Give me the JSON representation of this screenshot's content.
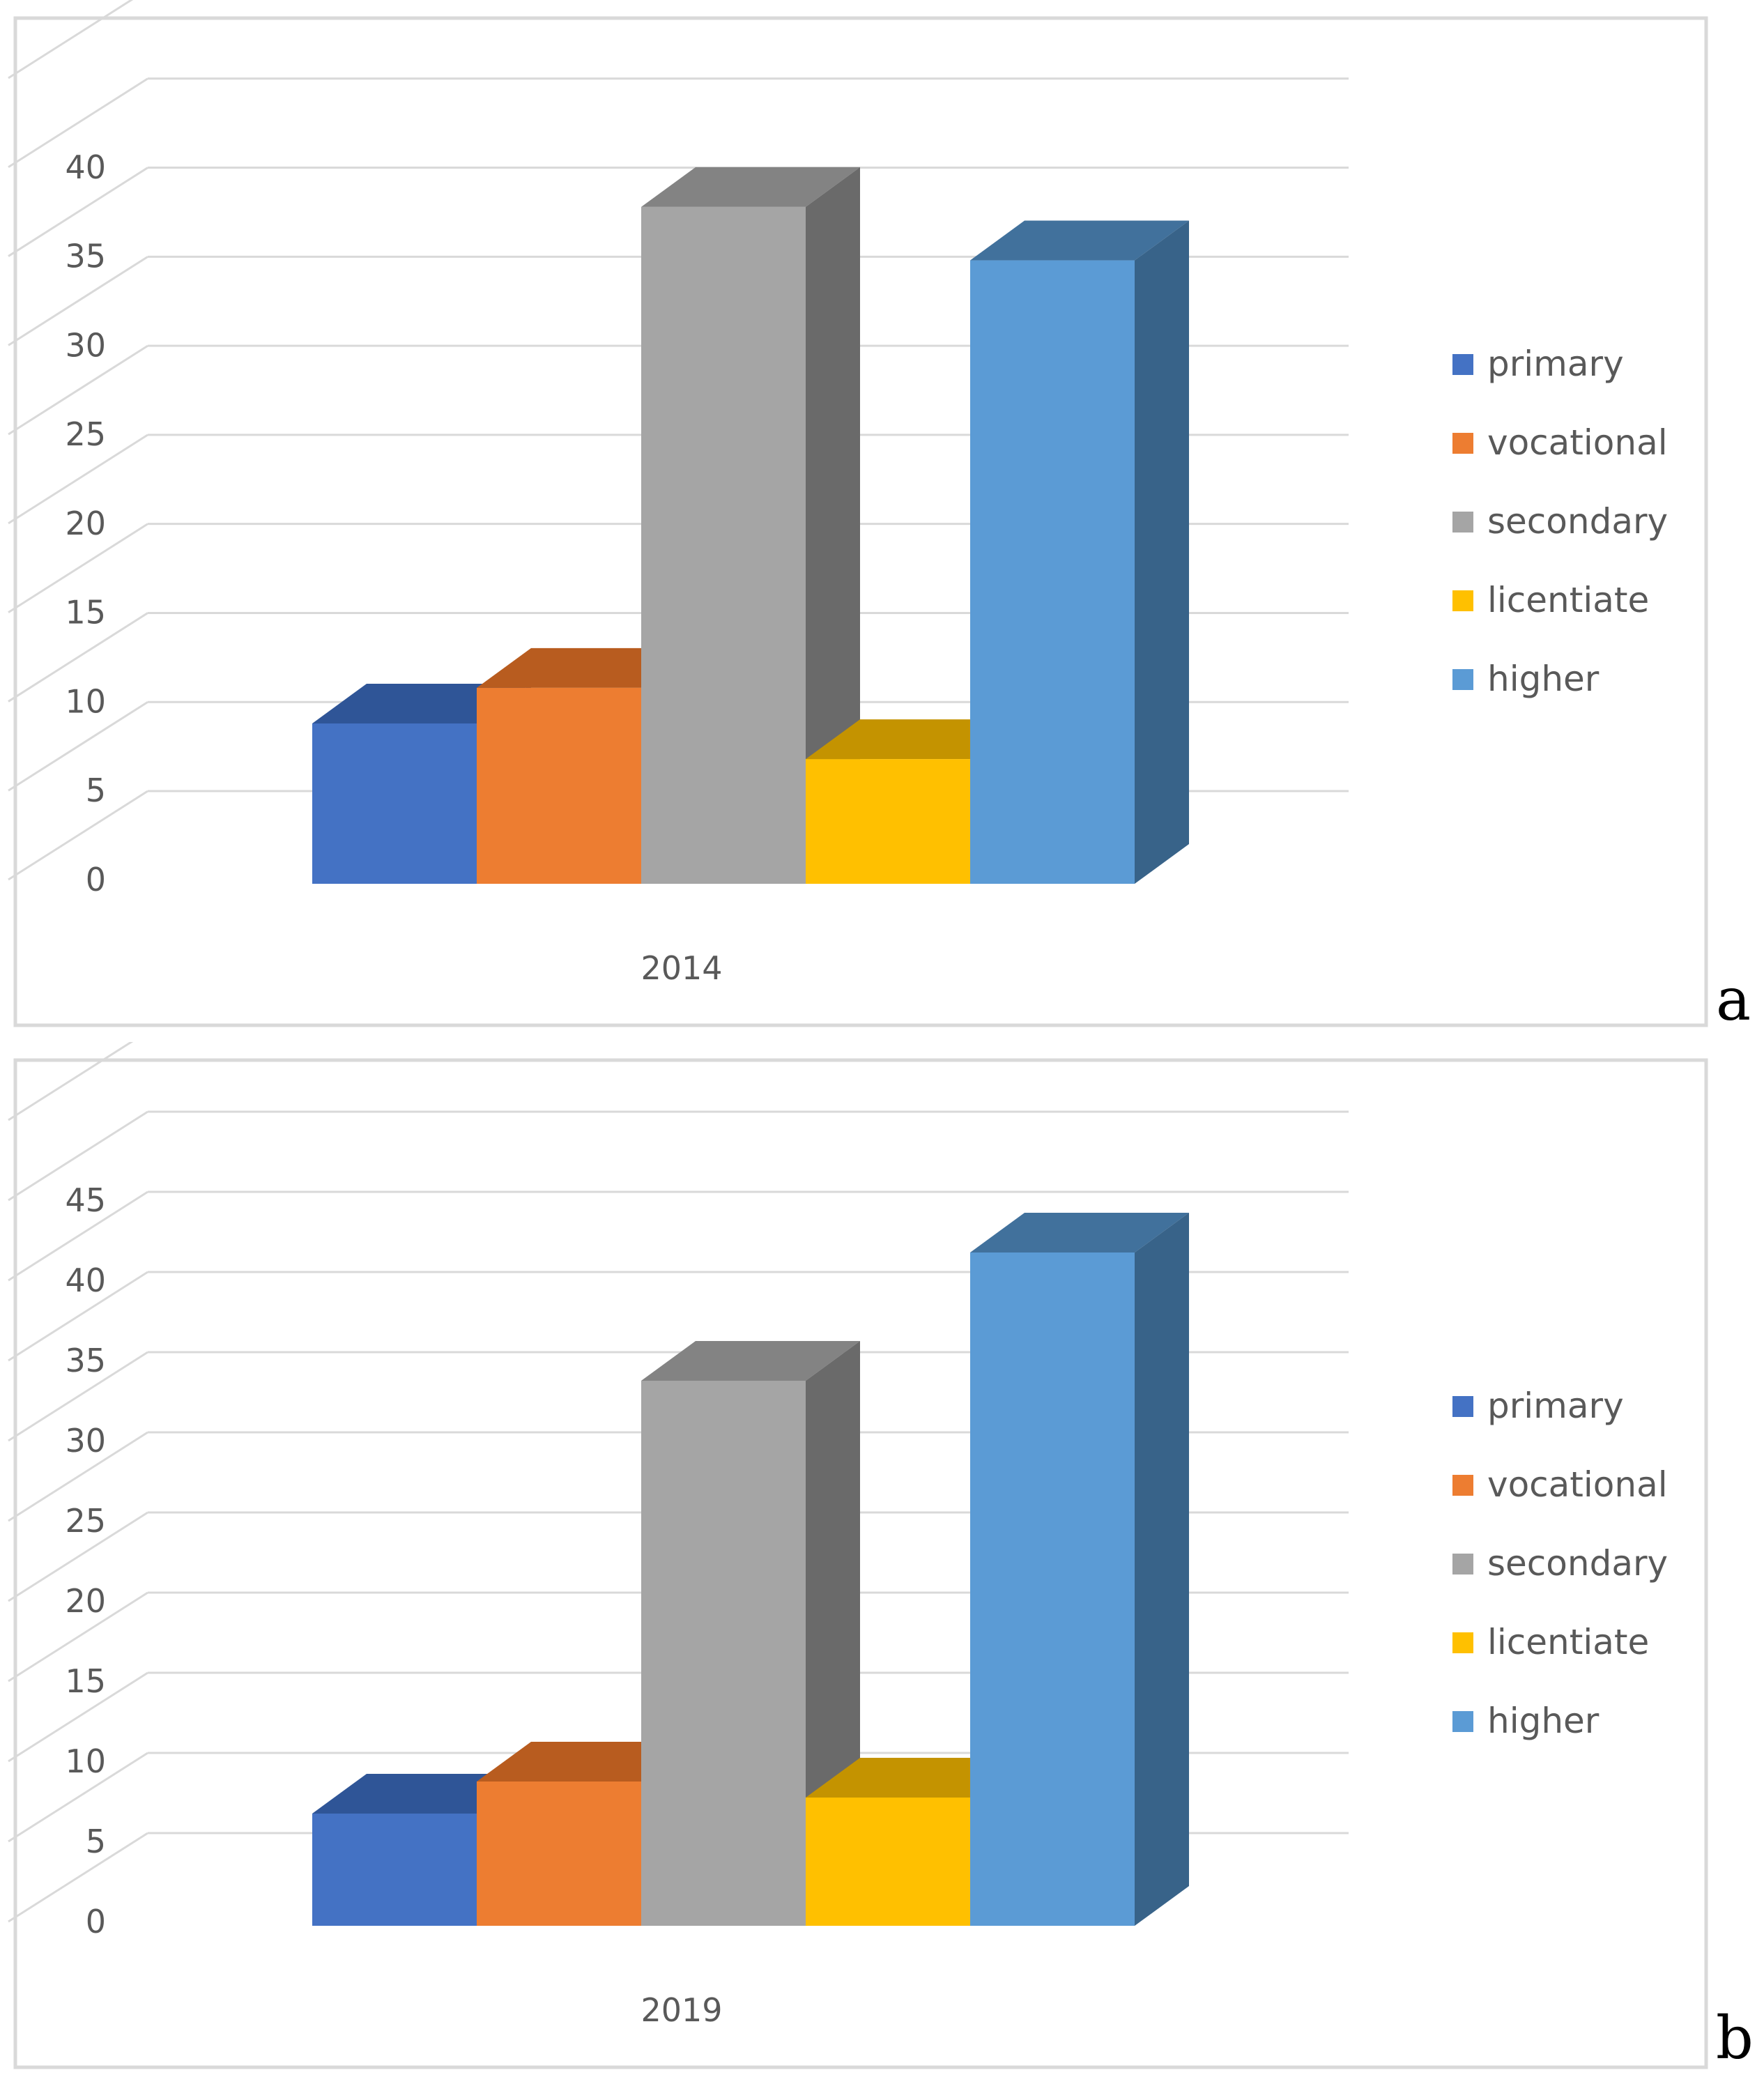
{
  "legend_colors": {
    "primary": {
      "face": "#4472C4",
      "top": "#2F5597",
      "side": "#2F5597"
    },
    "vocational": {
      "face": "#ED7D31",
      "top": "#B85C1F",
      "side": "#B85C1F"
    },
    "secondary": {
      "face": "#A5A5A5",
      "top": "#838383",
      "side": "#6A6A6A"
    },
    "licentiate": {
      "face": "#FFC000",
      "top": "#C49300",
      "side": "#C49300"
    },
    "higher": {
      "face": "#5B9BD5",
      "top": "#41719C",
      "side": "#386389"
    }
  },
  "chart_data": [
    {
      "type": "bar",
      "panel_label": "a",
      "categories": [
        "2014"
      ],
      "series": [
        {
          "name": "primary",
          "values": [
            9
          ]
        },
        {
          "name": "vocational",
          "values": [
            11
          ]
        },
        {
          "name": "secondary",
          "values": [
            38
          ]
        },
        {
          "name": "licentiate",
          "values": [
            7
          ]
        },
        {
          "name": "higher",
          "values": [
            35
          ]
        }
      ],
      "yticks": [
        0,
        5,
        10,
        15,
        20,
        25,
        30,
        35,
        40
      ],
      "ylim": [
        0,
        45
      ],
      "title": "",
      "xlabel": "",
      "ylabel": "",
      "legend": "right"
    },
    {
      "type": "bar",
      "panel_label": "b",
      "categories": [
        "2019"
      ],
      "series": [
        {
          "name": "primary",
          "values": [
            7
          ]
        },
        {
          "name": "vocational",
          "values": [
            9
          ]
        },
        {
          "name": "secondary",
          "values": [
            34
          ]
        },
        {
          "name": "licentiate",
          "values": [
            8
          ]
        },
        {
          "name": "higher",
          "values": [
            42
          ]
        }
      ],
      "yticks": [
        0,
        5,
        10,
        15,
        20,
        25,
        30,
        35,
        40,
        45
      ],
      "ylim": [
        0,
        50
      ],
      "title": "",
      "xlabel": "",
      "ylabel": "",
      "legend": "right"
    }
  ]
}
